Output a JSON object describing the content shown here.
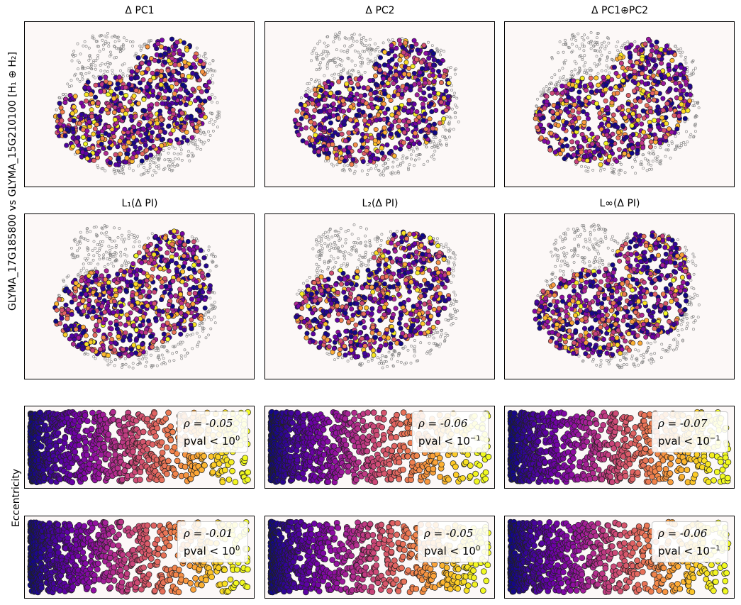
{
  "figure": {
    "ylabel_top": "GLYMA_17G185800 vs GLYMA_15G210100 [H₁ ⊕ H₂]",
    "ylabel_bottom": "Eccentricity"
  },
  "chart_data": [
    {
      "type": "scatter",
      "subplot": "A-1",
      "title": "Δ PC1",
      "kind": "spatial",
      "seed": 11
    },
    {
      "type": "scatter",
      "subplot": "A-2",
      "title": "Δ PC2",
      "kind": "spatial",
      "seed": 23
    },
    {
      "type": "scatter",
      "subplot": "A-3",
      "title": "Δ PC1⊕PC2",
      "kind": "spatial",
      "seed": 37
    },
    {
      "type": "scatter",
      "subplot": "B-1",
      "title": "L₁(Δ PI)",
      "kind": "spatial",
      "seed": 41
    },
    {
      "type": "scatter",
      "subplot": "B-2",
      "title": "L₂(Δ PI)",
      "kind": "spatial",
      "seed": 53
    },
    {
      "type": "scatter",
      "subplot": "B-3",
      "title": "L∞(Δ PI)",
      "kind": "spatial",
      "seed": 67
    },
    {
      "type": "scatter",
      "subplot": "C-1",
      "kind": "correlation",
      "rho_text": "ρ = -0.05",
      "pval_base": "pval  < 10",
      "pval_exp": "0",
      "seed": 71
    },
    {
      "type": "scatter",
      "subplot": "C-2",
      "kind": "correlation",
      "rho_text": "ρ = -0.06",
      "pval_base": "pval  < 10",
      "pval_exp": "−1",
      "seed": 83
    },
    {
      "type": "scatter",
      "subplot": "C-3",
      "kind": "correlation",
      "rho_text": "ρ = -0.07",
      "pval_base": "pval  < 10",
      "pval_exp": "−1",
      "seed": 97
    },
    {
      "type": "scatter",
      "subplot": "D-1",
      "kind": "correlation",
      "rho_text": "ρ = -0.01",
      "pval_base": "pval  < 10",
      "pval_exp": "0",
      "seed": 101
    },
    {
      "type": "scatter",
      "subplot": "D-2",
      "kind": "correlation",
      "rho_text": "ρ = -0.05",
      "pval_base": "pval  < 10",
      "pval_exp": "0",
      "seed": 113
    },
    {
      "type": "scatter",
      "subplot": "D-3",
      "kind": "correlation",
      "rho_text": "ρ = -0.06",
      "pval_base": "pval  < 10",
      "pval_exp": "−1",
      "seed": 127
    }
  ],
  "colors": {
    "panel_bg": "#fcf8f7",
    "background_tissue": "#888888",
    "colormap": "plasma"
  }
}
